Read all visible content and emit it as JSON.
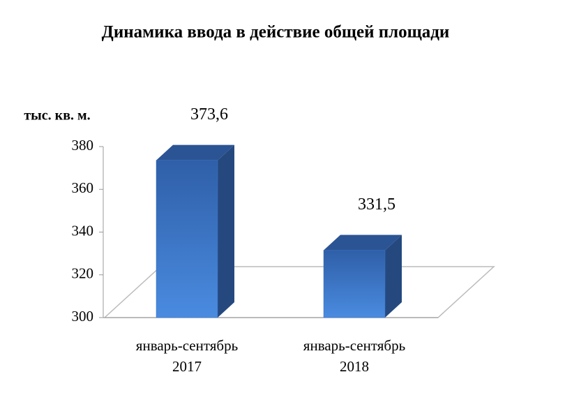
{
  "chart_data": {
    "type": "bar3d",
    "title": "Динамика ввода в действие общей площади",
    "y_label": "тыс. кв. м.",
    "categories": [
      "январь-сентябрь 2017",
      "январь-сентябрь 2018"
    ],
    "values": [
      373.6,
      331.5
    ],
    "value_labels": [
      "373,6",
      "331,5"
    ],
    "color": "#3b74c4",
    "ylim": [
      300,
      380
    ],
    "yticks": [
      300,
      320,
      340,
      360,
      380
    ]
  }
}
